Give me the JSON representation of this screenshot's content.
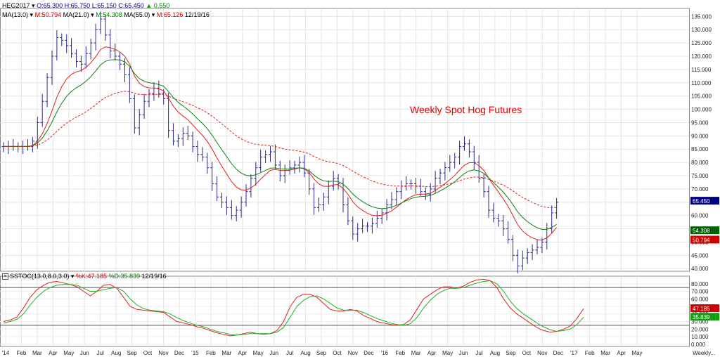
{
  "header": {
    "symbol": "HEG2017",
    "open": "O:65.300",
    "high": "H:65.750",
    "low": "L:65.150",
    "close": "C:65.450",
    "change": "0.550",
    "ma_line": {
      "ma13": "MA(13.0)",
      "ma13_val": "M:50.794",
      "ma21": "MA(21.0)",
      "ma21_val": "M:54.308",
      "ma55": "MA(55.0)",
      "ma55_val": "M:65.126",
      "date": "12/19/16"
    },
    "stoch": {
      "name": "SSTOC(13.0,8.0,3.0)",
      "k": "%K:47.185",
      "d": "%D:35.839",
      "date": "12/19/16"
    }
  },
  "chart_data": [
    {
      "type": "ohlc",
      "title": "Weekly Spot Hog Futures",
      "x_tick_labels": [
        "'14",
        "Feb",
        "Mar",
        "Apr",
        "May",
        "Jun",
        "Jul",
        "Aug",
        "Sep",
        "Oct",
        "Nov",
        "Dec",
        "'15",
        "Feb",
        "Mar",
        "Apr",
        "May",
        "Jun",
        "Jul",
        "Aug",
        "Sep",
        "Oct",
        "Nov",
        "Dec",
        "'16",
        "Feb",
        "Mar",
        "Apr",
        "May",
        "Jun",
        "Jul",
        "Aug",
        "Sep",
        "Oct",
        "Nov",
        "Dec",
        "'17",
        "Feb",
        "Mar",
        "Apr",
        "May",
        "Weekly..."
      ],
      "y_ticks": [
        "40.000",
        "45.000",
        "50.000",
        "55.000",
        "60.000",
        "65.000",
        "70.000",
        "75.000",
        "80.000",
        "85.000",
        "90.000",
        "95.000",
        "100.000",
        "105.000",
        "110.000",
        "115.000",
        "120.000",
        "125.000",
        "130.000",
        "135.000"
      ],
      "ylim": [
        39,
        138
      ],
      "grid": true,
      "price_series": [
        86,
        86,
        86,
        86,
        86,
        86,
        88,
        95,
        103,
        112,
        120,
        127,
        126,
        124,
        121,
        118,
        117,
        121,
        125,
        130,
        134,
        128,
        122,
        120,
        117,
        113,
        104,
        93,
        98,
        103,
        106,
        108,
        106,
        104,
        92,
        88,
        89,
        91,
        90,
        86,
        83,
        82,
        78,
        72,
        67,
        65,
        63,
        60,
        62,
        65,
        69,
        74,
        78,
        82,
        83,
        84,
        79,
        75,
        77,
        78,
        79,
        80,
        76,
        70,
        63,
        64,
        67,
        71,
        74,
        72,
        64,
        58,
        53,
        55,
        56,
        56,
        57,
        59,
        61,
        64,
        66,
        69,
        71,
        72,
        72,
        71,
        69,
        68,
        70,
        74,
        76,
        78,
        80,
        82,
        86,
        87,
        84,
        80,
        74,
        69,
        62,
        59,
        58,
        55,
        51,
        45,
        41,
        44,
        46,
        47,
        48,
        50,
        55,
        61,
        65
      ],
      "moving_averages": [
        {
          "name": "MA(13.0)",
          "value": "50.794",
          "color": "#e02020",
          "period": 13
        },
        {
          "name": "MA(21.0)",
          "value": "54.308",
          "color": "#108010",
          "period": 21
        },
        {
          "name": "MA(55.0)",
          "value": "65.126",
          "color": "#e02020",
          "period": 55,
          "dashed": true
        }
      ],
      "last_labels": [
        {
          "text": "65.450",
          "bg": "#000080",
          "value": 65.45
        },
        {
          "text": "54.308",
          "bg": "#006000",
          "value": 54.308
        },
        {
          "text": "50.794",
          "bg": "#d00000",
          "value": 50.794
        }
      ]
    },
    {
      "type": "line",
      "title": "SSTOC(13.0,8.0,3.0)",
      "y_ticks": [
        "0.000",
        "10.000",
        "20.000",
        "30.000",
        "40.000",
        "50.000",
        "60.000",
        "70.000",
        "80.000"
      ],
      "ylim": [
        -3,
        90
      ],
      "reference_lines": [
        75,
        25
      ],
      "series": [
        {
          "name": "%K",
          "color": "#e02020",
          "values": [
            30,
            32,
            36,
            48,
            62,
            72,
            78,
            82,
            83,
            81,
            79,
            76,
            70,
            64,
            70,
            78,
            79,
            74,
            62,
            50,
            46,
            45,
            44,
            43,
            42,
            36,
            30,
            28,
            26,
            23,
            21,
            18,
            15,
            13,
            11,
            12,
            14,
            16,
            14,
            13,
            14,
            18,
            30,
            50,
            62,
            66,
            66,
            62,
            54,
            46,
            44,
            44,
            46,
            44,
            38,
            34,
            30,
            28,
            26,
            25,
            26,
            32,
            46,
            60,
            66,
            72,
            76,
            76,
            74,
            77,
            82,
            85,
            86,
            84,
            75,
            60,
            48,
            40,
            34,
            28,
            22,
            18,
            16,
            17,
            20,
            24,
            34,
            47
          ]
        },
        {
          "name": "%D",
          "color": "#20b020",
          "values": [
            28,
            30,
            33,
            40,
            52,
            62,
            70,
            75,
            78,
            79,
            79,
            78,
            74,
            70,
            70,
            72,
            74,
            75,
            70,
            60,
            52,
            47,
            45,
            44,
            43,
            40,
            35,
            31,
            28,
            25,
            23,
            20,
            17,
            15,
            13,
            12,
            13,
            14,
            14,
            14,
            14,
            16,
            22,
            36,
            50,
            58,
            63,
            64,
            60,
            54,
            48,
            45,
            45,
            45,
            42,
            38,
            34,
            31,
            28,
            26,
            25,
            27,
            35,
            48,
            58,
            66,
            71,
            74,
            74,
            75,
            78,
            81,
            83,
            84,
            80,
            70,
            57,
            47,
            40,
            34,
            28,
            23,
            19,
            17,
            18,
            20,
            26,
            35.839
          ]
        }
      ],
      "last_labels": [
        {
          "text": "47.185",
          "bg": "#d00000",
          "value": 47.185
        },
        {
          "text": "35.839",
          "bg": "#10a010",
          "value": 35.839
        }
      ]
    }
  ]
}
